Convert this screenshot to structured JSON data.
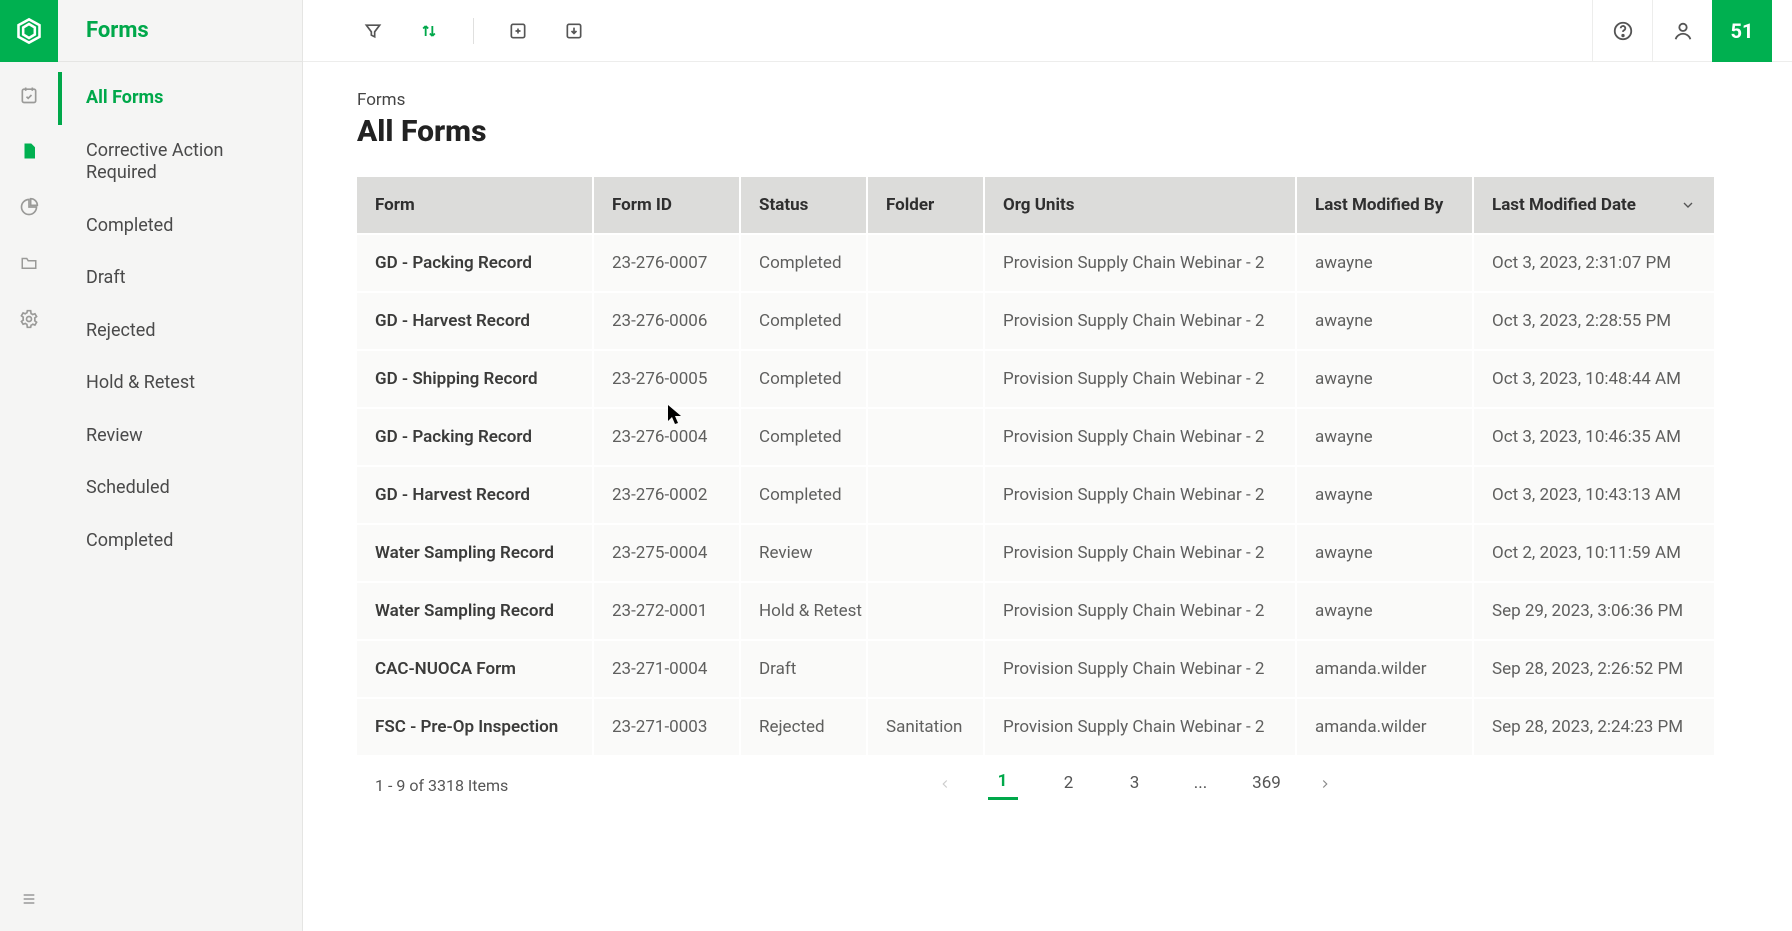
{
  "brand_color": "#00b050",
  "sidebar": {
    "title": "Forms",
    "items": [
      {
        "label": "All Forms",
        "active": true
      },
      {
        "label": "Corrective Action Required",
        "active": false
      },
      {
        "label": "Completed",
        "active": false
      },
      {
        "label": "Draft",
        "active": false
      },
      {
        "label": "Rejected",
        "active": false
      },
      {
        "label": "Hold & Retest",
        "active": false
      },
      {
        "label": "Review",
        "active": false
      },
      {
        "label": "Scheduled",
        "active": false
      },
      {
        "label": "Completed",
        "active": false
      }
    ]
  },
  "toolbar": {
    "notification_count": "51"
  },
  "page": {
    "breadcrumb": "Forms",
    "title": "All Forms"
  },
  "table": {
    "columns": [
      "Form",
      "Form ID",
      "Status",
      "Folder",
      "Org Units",
      "Last Modified By",
      "Last Modified Date"
    ],
    "rows": [
      {
        "form": "GD - Packing Record",
        "form_id": "23-276-0007",
        "status": "Completed",
        "folder": "",
        "org_units": "Provision Supply Chain Webinar - 2",
        "modified_by": "awayne",
        "modified_date": "Oct 3, 2023, 2:31:07 PM"
      },
      {
        "form": "GD - Harvest Record",
        "form_id": "23-276-0006",
        "status": "Completed",
        "folder": "",
        "org_units": "Provision Supply Chain Webinar - 2",
        "modified_by": "awayne",
        "modified_date": "Oct 3, 2023, 2:28:55 PM"
      },
      {
        "form": "GD - Shipping Record",
        "form_id": "23-276-0005",
        "status": "Completed",
        "folder": "",
        "org_units": "Provision Supply Chain Webinar - 2",
        "modified_by": "awayne",
        "modified_date": "Oct 3, 2023, 10:48:44 AM"
      },
      {
        "form": "GD - Packing Record",
        "form_id": "23-276-0004",
        "status": "Completed",
        "folder": "",
        "org_units": "Provision Supply Chain Webinar - 2",
        "modified_by": "awayne",
        "modified_date": "Oct 3, 2023, 10:46:35 AM"
      },
      {
        "form": "GD - Harvest Record",
        "form_id": "23-276-0002",
        "status": "Completed",
        "folder": "",
        "org_units": "Provision Supply Chain Webinar - 2",
        "modified_by": "awayne",
        "modified_date": "Oct 3, 2023, 10:43:13 AM"
      },
      {
        "form": "Water Sampling Record",
        "form_id": "23-275-0004",
        "status": "Review",
        "folder": "",
        "org_units": "Provision Supply Chain Webinar - 2",
        "modified_by": "awayne",
        "modified_date": "Oct 2, 2023, 10:11:59 AM"
      },
      {
        "form": "Water Sampling Record",
        "form_id": "23-272-0001",
        "status": "Hold & Retest",
        "folder": "",
        "org_units": "Provision Supply Chain Webinar - 2",
        "modified_by": "awayne",
        "modified_date": "Sep 29, 2023, 3:06:36 PM"
      },
      {
        "form": "CAC-NUOCA Form",
        "form_id": "23-271-0004",
        "status": "Draft",
        "folder": "",
        "org_units": "Provision Supply Chain Webinar - 2",
        "modified_by": "amanda.wilder",
        "modified_date": "Sep 28, 2023, 2:26:52 PM"
      },
      {
        "form": "FSC - Pre-Op Inspection",
        "form_id": "23-271-0003",
        "status": "Rejected",
        "folder": "Sanitation",
        "org_units": "Provision Supply Chain Webinar - 2",
        "modified_by": "amanda.wilder",
        "modified_date": "Sep 28, 2023, 2:24:23 PM"
      }
    ]
  },
  "pagination": {
    "info": "1 - 9 of 3318 Items",
    "pages": [
      "1",
      "2",
      "3",
      "...",
      "369"
    ],
    "current": "1"
  }
}
